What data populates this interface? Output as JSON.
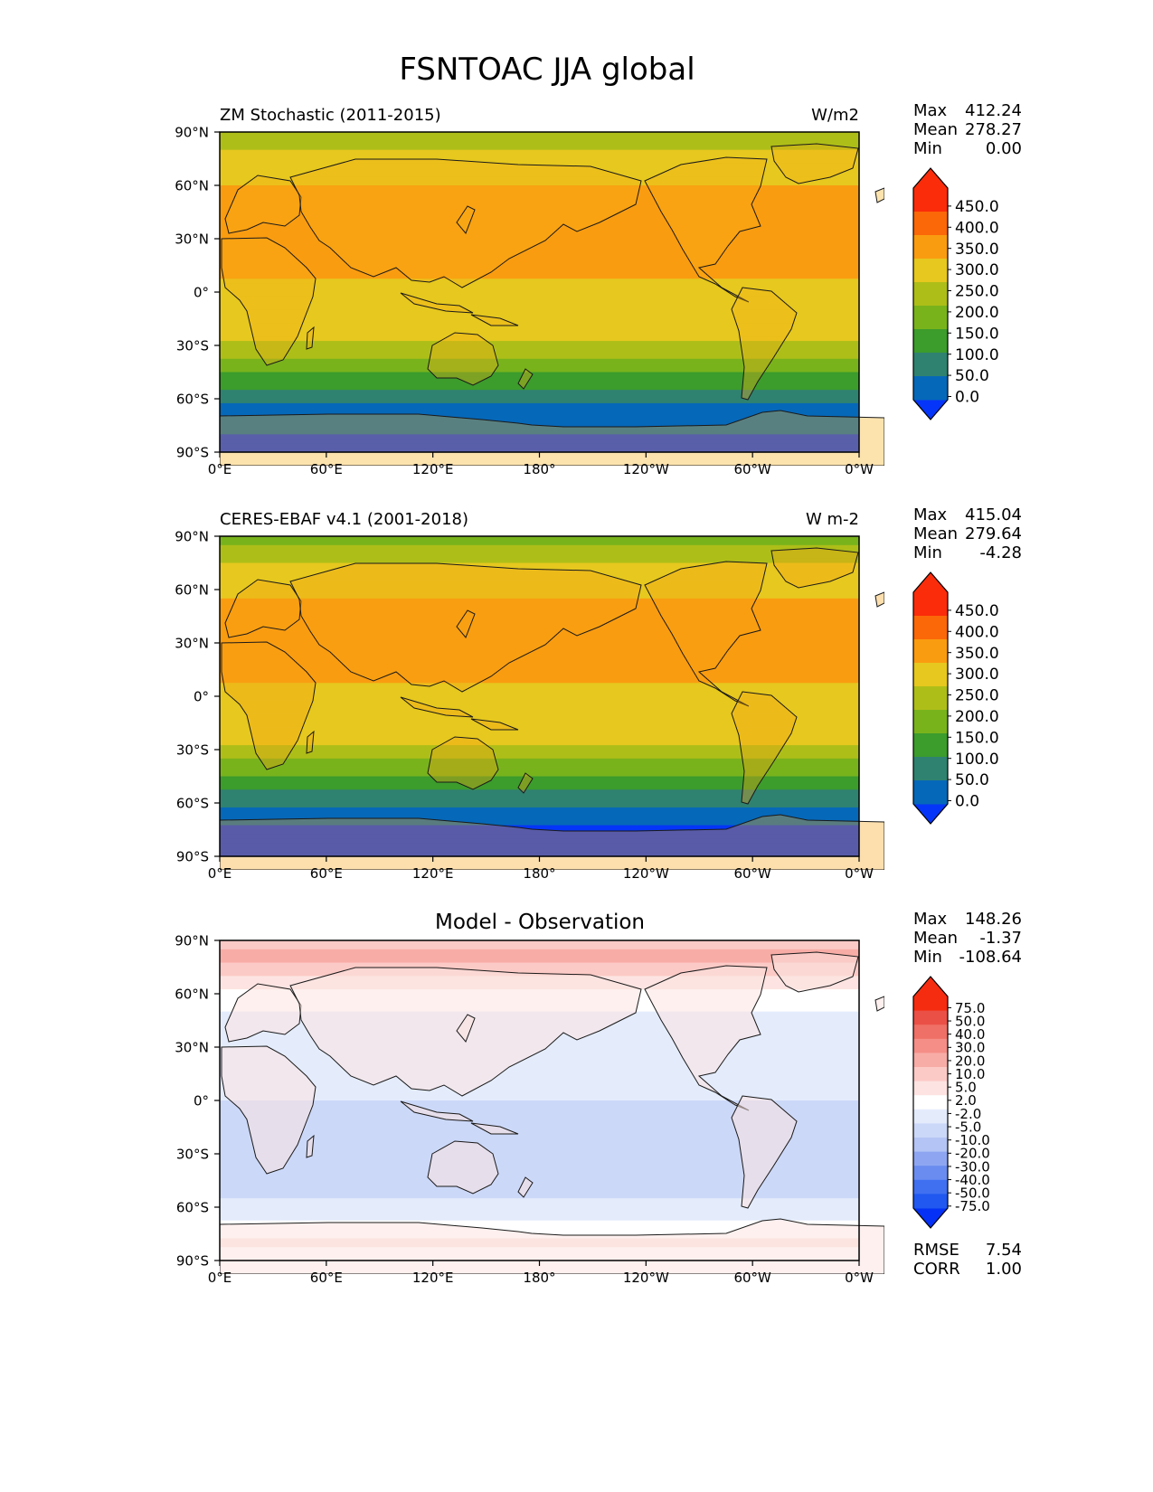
{
  "title": "FSNTOAC JJA global",
  "lat_ticks": [
    "90°N",
    "60°N",
    "30°N",
    "0°",
    "30°S",
    "60°S",
    "90°S"
  ],
  "lon_ticks": [
    "0°E",
    "60°E",
    "120°E",
    "180°",
    "120°W",
    "60°W",
    "0°W"
  ],
  "stat_labels": {
    "max": "Max",
    "mean": "Mean",
    "min": "Min",
    "rmse": "RMSE",
    "corr": "CORR"
  },
  "colors": {
    "frame": "#000000",
    "coast": "#1a1a1a"
  },
  "panels": [
    {
      "name": "model",
      "label": "ZM Stochastic (2011-2015)",
      "units": "W/m2",
      "stats": {
        "max": "412.24",
        "mean": "278.27",
        "min": "0.00"
      },
      "colorbar_ticks": [
        "450.0",
        "400.0",
        "350.0",
        "300.0",
        "250.0",
        "200.0",
        "150.0",
        "100.0",
        "50.0",
        "0.0"
      ]
    },
    {
      "name": "observation",
      "label": "CERES-EBAF v4.1 (2001-2018)",
      "units": "W m-2",
      "stats": {
        "max": "415.04",
        "mean": "279.64",
        "min": "-4.28"
      },
      "colorbar_ticks": [
        "450.0",
        "400.0",
        "350.0",
        "300.0",
        "250.0",
        "200.0",
        "150.0",
        "100.0",
        "50.0",
        "0.0"
      ]
    },
    {
      "name": "difference",
      "title": "Model - Observation",
      "stats": {
        "max": "148.26",
        "mean": "-1.37",
        "min": "-108.64",
        "rmse": "7.54",
        "corr": "1.00"
      },
      "colorbar_ticks": [
        "75.0",
        "50.0",
        "40.0",
        "30.0",
        "20.0",
        "10.0",
        "5.0",
        "2.0",
        "-2.0",
        "-5.0",
        "-10.0",
        "-20.0",
        "-30.0",
        "-40.0",
        "-50.0",
        "-75.0"
      ]
    }
  ],
  "chart_data": [
    {
      "type": "heatmap",
      "title": "ZM Stochastic (2011-2015)",
      "variable": "FSNTOAC",
      "season": "JJA",
      "units": "W/m2",
      "xlim": [
        0,
        360
      ],
      "ylim": [
        -90,
        90
      ],
      "levels": [
        0,
        50,
        100,
        150,
        200,
        250,
        300,
        350,
        400,
        450
      ],
      "level_colors": [
        "#0535f8",
        "#0668b8",
        "#2f8270",
        "#3c9c2c",
        "#79b31c",
        "#aebe18",
        "#e6c81e",
        "#fa9c10",
        "#fb6808",
        "#fb2c0a"
      ],
      "zonal_profile": {
        "lat": [
          -90,
          -83,
          -75,
          -67,
          -60,
          -53,
          -47,
          -40,
          -33,
          -27,
          -20,
          -13,
          -7,
          0,
          7,
          13,
          20,
          27,
          33,
          40,
          47,
          53,
          60,
          67,
          75,
          83,
          90
        ],
        "value": [
          40,
          45,
          55,
          80,
          120,
          155,
          190,
          235,
          265,
          300,
          320,
          335,
          340,
          345,
          350,
          355,
          365,
          385,
          395,
          380,
          360,
          355,
          350,
          340,
          320,
          285,
          250
        ]
      }
    },
    {
      "type": "heatmap",
      "title": "CERES-EBAF v4.1 (2001-2018)",
      "variable": "FSNTOAC",
      "season": "JJA",
      "units": "W m-2",
      "xlim": [
        0,
        360
      ],
      "ylim": [
        -90,
        90
      ],
      "levels": [
        0,
        50,
        100,
        150,
        200,
        250,
        300,
        350,
        400,
        450
      ],
      "level_colors": [
        "#0535f8",
        "#0668b8",
        "#2f8270",
        "#3c9c2c",
        "#79b31c",
        "#aebe18",
        "#e6c81e",
        "#fa9c10",
        "#fb6808",
        "#fb2c0a"
      ],
      "zonal_profile": {
        "lat": [
          -90,
          -83,
          -75,
          -67,
          -60,
          -53,
          -47,
          -40,
          -33,
          -27,
          -20,
          -13,
          -7,
          0,
          7,
          13,
          20,
          27,
          33,
          40,
          47,
          53,
          60,
          67,
          75,
          83,
          90
        ],
        "value": [
          20,
          25,
          40,
          75,
          118,
          152,
          188,
          232,
          262,
          298,
          318,
          333,
          338,
          345,
          350,
          355,
          367,
          388,
          395,
          378,
          360,
          352,
          345,
          330,
          305,
          260,
          230
        ]
      }
    },
    {
      "type": "heatmap",
      "title": "Model - Observation",
      "variable": "FSNTOAC",
      "season": "JJA",
      "xlim": [
        0,
        360
      ],
      "ylim": [
        -90,
        90
      ],
      "levels": [
        -75,
        -50,
        -40,
        -30,
        -20,
        -10,
        -5,
        -2,
        2,
        5,
        10,
        20,
        30,
        40,
        50,
        75
      ],
      "level_colors": [
        "#0530f5",
        "#2058f0",
        "#4070f0",
        "#6a8cf0",
        "#8ea6f2",
        "#b4c4f4",
        "#ccd8f8",
        "#e4ecfc",
        "#ffffff",
        "#fde4e2",
        "#fccac6",
        "#f8aca6",
        "#f48e86",
        "#ef7066",
        "#ea5046",
        "#f62c10"
      ],
      "zonal_profile": {
        "lat": [
          -90,
          -80,
          -70,
          -60,
          -50,
          -40,
          -30,
          -20,
          -10,
          0,
          10,
          20,
          30,
          40,
          50,
          60,
          70,
          80,
          90
        ],
        "value": [
          3,
          6,
          3,
          -1,
          -3,
          -3,
          -4,
          -3,
          -3,
          -2,
          -1,
          1,
          2,
          1,
          2,
          4,
          10,
          22,
          18
        ]
      }
    }
  ]
}
